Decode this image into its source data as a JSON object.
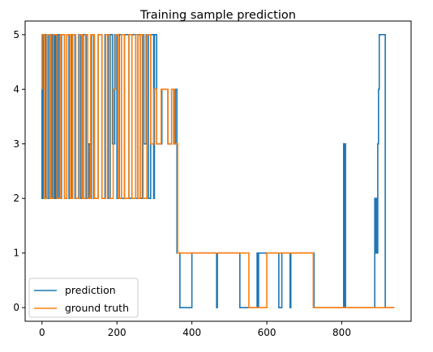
{
  "chart_data": {
    "type": "line",
    "title": "Training sample prediction",
    "xlabel": "",
    "ylabel": "",
    "xlim": [
      -45,
      985
    ],
    "ylim": [
      -0.25,
      5.25
    ],
    "xticks": [
      0,
      200,
      400,
      600,
      800
    ],
    "yticks": [
      0,
      1,
      2,
      3,
      4,
      5
    ],
    "grid": false,
    "legend_position": "lower-left",
    "series": [
      {
        "name": "prediction",
        "color": "#1f77b4",
        "x": [
          0,
          0,
          3,
          3,
          10,
          10,
          18,
          18,
          24,
          24,
          28,
          28,
          32,
          32,
          35,
          35,
          38,
          38,
          42,
          42,
          46,
          46,
          52,
          52,
          60,
          60,
          66,
          66,
          72,
          72,
          80,
          80,
          88,
          88,
          98,
          98,
          104,
          104,
          110,
          110,
          118,
          118,
          124,
          124,
          128,
          128,
          132,
          132,
          138,
          138,
          150,
          150,
          160,
          160,
          168,
          168,
          176,
          176,
          182,
          182,
          188,
          188,
          194,
          194,
          200,
          200,
          206,
          206,
          212,
          212,
          220,
          220,
          232,
          232,
          240,
          240,
          250,
          250,
          256,
          256,
          262,
          262,
          268,
          268,
          272,
          272,
          278,
          278,
          284,
          284,
          290,
          290,
          298,
          298,
          300,
          300,
          306,
          306,
          320,
          320,
          336,
          336,
          346,
          346,
          352,
          352,
          356,
          356,
          360,
          360,
          368,
          368,
          400,
          400,
          466,
          466,
          468,
          468,
          470,
          470,
          528,
          528,
          574,
          574,
          576,
          576,
          578,
          578,
          582,
          582,
          632,
          632,
          640,
          640,
          662,
          662,
          664,
          664,
          726,
          726,
          805,
          805,
          806,
          806,
          808,
          808,
          810,
          810,
          812,
          812,
          888,
          888,
          890,
          890,
          892,
          892,
          894,
          894,
          896,
          896,
          898,
          898,
          900,
          900,
          902,
          902,
          904,
          904,
          916,
          916,
          920,
          920,
          940
        ],
        "y": [
          4,
          2,
          2,
          5,
          5,
          2,
          2,
          5,
          5,
          2,
          2,
          5,
          5,
          2,
          2,
          5,
          5,
          2,
          2,
          5,
          5,
          2,
          2,
          5,
          5,
          2,
          2,
          5,
          5,
          2,
          2,
          5,
          5,
          2,
          2,
          5,
          5,
          2,
          2,
          5,
          5,
          2,
          2,
          3,
          3,
          2,
          2,
          5,
          5,
          2,
          2,
          5,
          5,
          2,
          2,
          5,
          5,
          2,
          2,
          5,
          5,
          3,
          3,
          5,
          5,
          2,
          2,
          5,
          5,
          2,
          2,
          5,
          5,
          2,
          2,
          5,
          5,
          2,
          2,
          5,
          5,
          2,
          2,
          5,
          5,
          3,
          3,
          5,
          5,
          2,
          2,
          5,
          5,
          2,
          2,
          5,
          5,
          3,
          3,
          4,
          4,
          3,
          3,
          4,
          4,
          3,
          3,
          4,
          4,
          1,
          1,
          0,
          0,
          1,
          1,
          0,
          0,
          1,
          1,
          1,
          1,
          0,
          0,
          1,
          1,
          0,
          0,
          1,
          1,
          1,
          1,
          0,
          0,
          1,
          1,
          0,
          0,
          1,
          1,
          0,
          0,
          3,
          3,
          0,
          0,
          3,
          3,
          0,
          0,
          0,
          0,
          2,
          2,
          1,
          1,
          2,
          2,
          1,
          1,
          3,
          3,
          4,
          4,
          5,
          5,
          5,
          5,
          5,
          5,
          0,
          0,
          0,
          0
        ]
      },
      {
        "name": "ground truth",
        "color": "#ff7f0e",
        "x": [
          0,
          0,
          6,
          6,
          14,
          14,
          22,
          22,
          30,
          30,
          40,
          40,
          50,
          50,
          60,
          60,
          66,
          66,
          76,
          76,
          82,
          82,
          90,
          90,
          100,
          100,
          108,
          108,
          116,
          116,
          122,
          122,
          130,
          130,
          140,
          140,
          150,
          150,
          160,
          160,
          170,
          170,
          180,
          180,
          190,
          190,
          196,
          196,
          204,
          204,
          212,
          212,
          220,
          220,
          232,
          232,
          240,
          240,
          250,
          250,
          256,
          256,
          262,
          262,
          270,
          270,
          280,
          280,
          290,
          290,
          298,
          298,
          306,
          306,
          318,
          318,
          336,
          336,
          346,
          346,
          354,
          354,
          362,
          362,
          552,
          552,
          600,
          600,
          724,
          724,
          940
        ],
        "y": [
          4,
          5,
          5,
          2,
          2,
          5,
          5,
          2,
          2,
          5,
          5,
          2,
          2,
          5,
          5,
          2,
          2,
          5,
          5,
          2,
          2,
          5,
          5,
          2,
          2,
          5,
          5,
          2,
          2,
          5,
          5,
          2,
          2,
          5,
          5,
          2,
          2,
          5,
          5,
          2,
          2,
          5,
          5,
          2,
          2,
          4,
          4,
          5,
          5,
          2,
          2,
          5,
          5,
          2,
          2,
          5,
          5,
          2,
          2,
          5,
          5,
          2,
          2,
          5,
          5,
          2,
          2,
          5,
          5,
          3,
          3,
          4,
          4,
          3,
          3,
          4,
          4,
          3,
          3,
          4,
          4,
          3,
          3,
          1,
          1,
          0,
          0,
          1,
          1,
          0,
          0
        ]
      }
    ]
  }
}
